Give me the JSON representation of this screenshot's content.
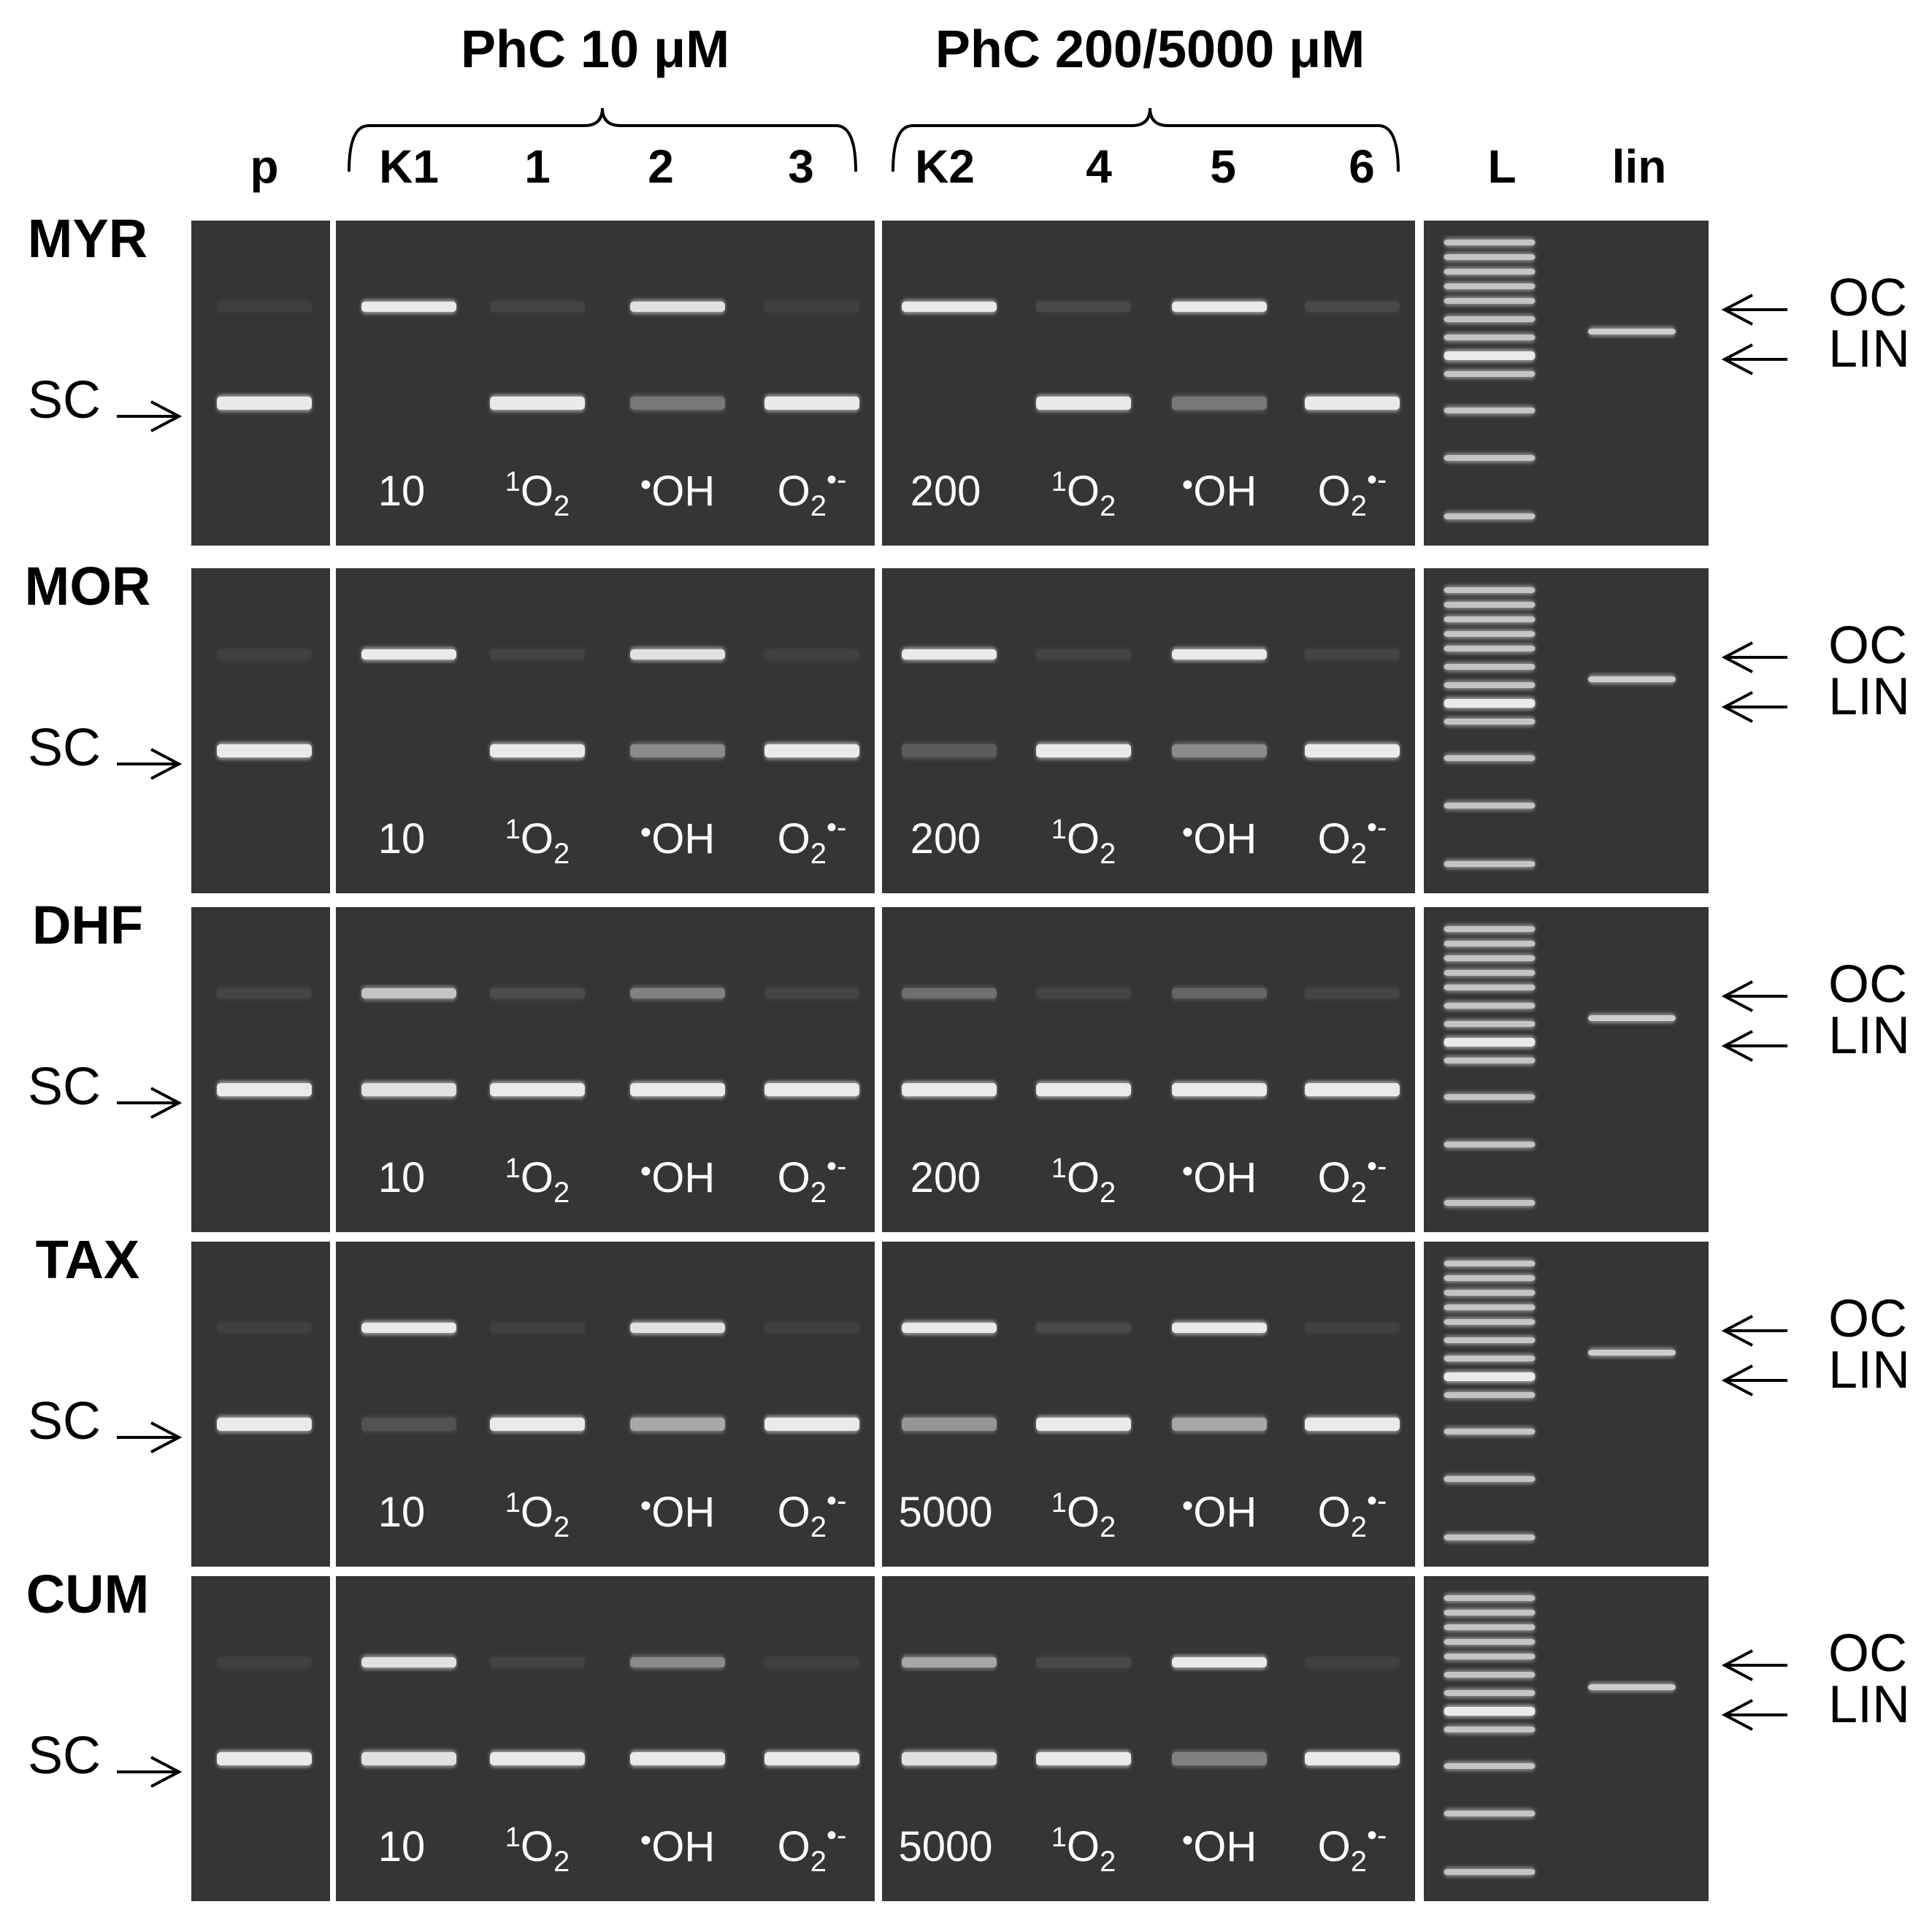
{
  "colors": {
    "gel_background": "#353535",
    "band": "#f4f4f4",
    "figure_background": "#ffffff",
    "text": "#000000",
    "gel_text": "#ffffff"
  },
  "group_headers": {
    "low": "PhC 10 μM",
    "high": "PhC 200/5000 μM"
  },
  "lanes": [
    {
      "id": "p",
      "label": "p"
    },
    {
      "id": "k1",
      "label": "K1"
    },
    {
      "id": "l1",
      "label": "1"
    },
    {
      "id": "l2",
      "label": "2"
    },
    {
      "id": "l3",
      "label": "3"
    },
    {
      "id": "k2",
      "label": "K2"
    },
    {
      "id": "l4",
      "label": "4"
    },
    {
      "id": "l5",
      "label": "5"
    },
    {
      "id": "l6",
      "label": "6"
    },
    {
      "id": "ladder",
      "label": "L"
    },
    {
      "id": "lin",
      "label": "lin"
    }
  ],
  "band_labels": {
    "sc": "SC",
    "oc": "OC",
    "lin": "LIN"
  },
  "lane_annotations": {
    "singlet_oxygen": {
      "superscript": "1",
      "main": "O",
      "subscript": "2"
    },
    "hydroxyl": {
      "dot": "•",
      "main": "OH"
    },
    "superoxide": {
      "main": "O",
      "subscript": "2",
      "superscript": "•-"
    }
  },
  "rows": [
    {
      "label": "MYR",
      "k1_conc": "10",
      "k2_conc": "200",
      "oc": {
        "p": 0.05,
        "k1": 0.95,
        "l1": 0.08,
        "l2": 0.9,
        "l3": 0.06,
        "k2": 0.95,
        "l4": 0.1,
        "l5": 0.95,
        "l6": 0.1
      },
      "sc": {
        "p": 0.95,
        "k1": 0.0,
        "l1": 0.95,
        "l2": 0.35,
        "l3": 0.95,
        "k2": 0.0,
        "l4": 0.95,
        "l5": 0.35,
        "l6": 0.95
      },
      "lin_band": 0.8
    },
    {
      "label": "MOR",
      "k1_conc": "10",
      "k2_conc": "200",
      "oc": {
        "p": 0.06,
        "k1": 0.95,
        "l1": 0.08,
        "l2": 0.9,
        "l3": 0.06,
        "k2": 0.95,
        "l4": 0.08,
        "l5": 0.95,
        "l6": 0.08
      },
      "sc": {
        "p": 0.95,
        "k1": 0.0,
        "l1": 0.95,
        "l2": 0.45,
        "l3": 0.95,
        "k2": 0.2,
        "l4": 0.95,
        "l5": 0.45,
        "l6": 0.95
      },
      "lin_band": 0.8
    },
    {
      "label": "DHF",
      "k1_conc": "10",
      "k2_conc": "200",
      "oc": {
        "p": 0.08,
        "k1": 0.75,
        "l1": 0.12,
        "l2": 0.4,
        "l3": 0.08,
        "k2": 0.3,
        "l4": 0.08,
        "l5": 0.25,
        "l6": 0.08
      },
      "sc": {
        "p": 0.95,
        "k1": 0.9,
        "l1": 0.95,
        "l2": 0.95,
        "l3": 0.95,
        "k2": 0.95,
        "l4": 0.95,
        "l5": 0.95,
        "l6": 0.95
      },
      "lin_band": 0.8
    },
    {
      "label": "TAX",
      "k1_conc": "10",
      "k2_conc": "5000",
      "oc": {
        "p": 0.05,
        "k1": 0.95,
        "l1": 0.06,
        "l2": 0.9,
        "l3": 0.05,
        "k2": 0.95,
        "l4": 0.1,
        "l5": 0.95,
        "l6": 0.06
      },
      "sc": {
        "p": 0.95,
        "k1": 0.15,
        "l1": 0.95,
        "l2": 0.6,
        "l3": 0.95,
        "k2": 0.5,
        "l4": 0.95,
        "l5": 0.6,
        "l6": 0.95
      },
      "lin_band": 0.8
    },
    {
      "label": "CUM",
      "k1_conc": "10",
      "k2_conc": "5000",
      "oc": {
        "p": 0.06,
        "k1": 0.9,
        "l1": 0.08,
        "l2": 0.45,
        "l3": 0.06,
        "k2": 0.6,
        "l4": 0.1,
        "l5": 0.95,
        "l6": 0.06
      },
      "sc": {
        "p": 0.95,
        "k1": 0.9,
        "l1": 0.95,
        "l2": 0.95,
        "l3": 0.95,
        "k2": 0.9,
        "l4": 0.95,
        "l5": 0.4,
        "l6": 0.95
      },
      "lin_band": 0.8
    }
  ]
}
